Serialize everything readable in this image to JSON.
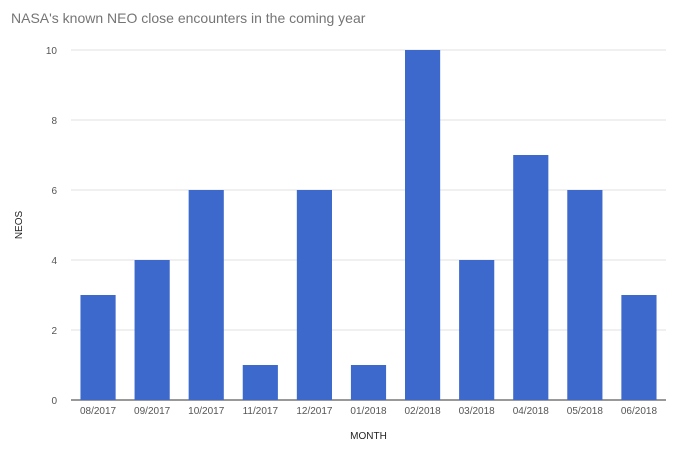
{
  "chart_data": {
    "type": "bar",
    "title": "NASA's known NEO close encounters in the coming year",
    "xlabel": "MONTH",
    "ylabel": "NEOS",
    "categories": [
      "08/2017",
      "09/2017",
      "10/2017",
      "11/2017",
      "12/2017",
      "01/2018",
      "02/2018",
      "03/2018",
      "04/2018",
      "05/2018",
      "06/2018"
    ],
    "series": [
      {
        "values": [
          3,
          4,
          6,
          1,
          6,
          1,
          10,
          4,
          7,
          6,
          3
        ],
        "color": "#3d68cc"
      }
    ],
    "ylim": [
      0,
      10
    ],
    "yticks": [
      0,
      2,
      4,
      6,
      8,
      10
    ],
    "grid": true,
    "legend": "none"
  }
}
